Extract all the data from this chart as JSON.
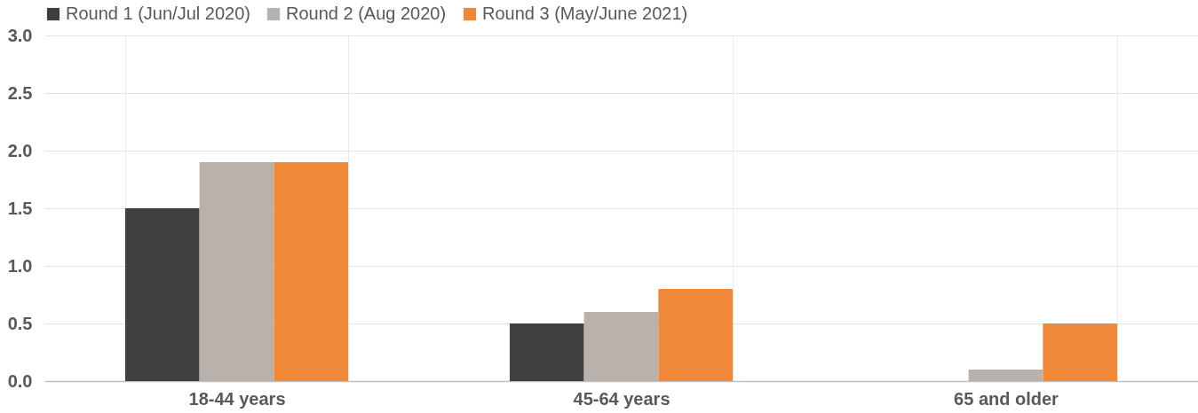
{
  "chart_data": {
    "type": "bar",
    "categories": [
      "18-44 years",
      "45-64 years",
      "65 and older"
    ],
    "series": [
      {
        "name": "Round 1 (Jun/Jul 2020)",
        "color": "#404040",
        "values": [
          1.5,
          0.5,
          0
        ]
      },
      {
        "name": "Round 2 (Aug 2020)",
        "color": "#b9b1ac",
        "values": [
          1.9,
          0.6,
          0.1
        ]
      },
      {
        "name": "Round 3 (May/June 2021)",
        "color": "#f0883a",
        "values": [
          1.9,
          0.8,
          0.5
        ]
      }
    ],
    "ylim": [
      0,
      3
    ],
    "yticks": [
      {
        "value": 0,
        "label": "0.0"
      },
      {
        "value": 0.5,
        "label": "0.5"
      },
      {
        "value": 1,
        "label": "1.0"
      },
      {
        "value": 1.5,
        "label": "1.5"
      },
      {
        "value": 2,
        "label": "2.0"
      },
      {
        "value": 2.5,
        "label": "2.5"
      },
      {
        "value": 3,
        "label": "3.0"
      }
    ],
    "grid": true,
    "legend": "top"
  }
}
